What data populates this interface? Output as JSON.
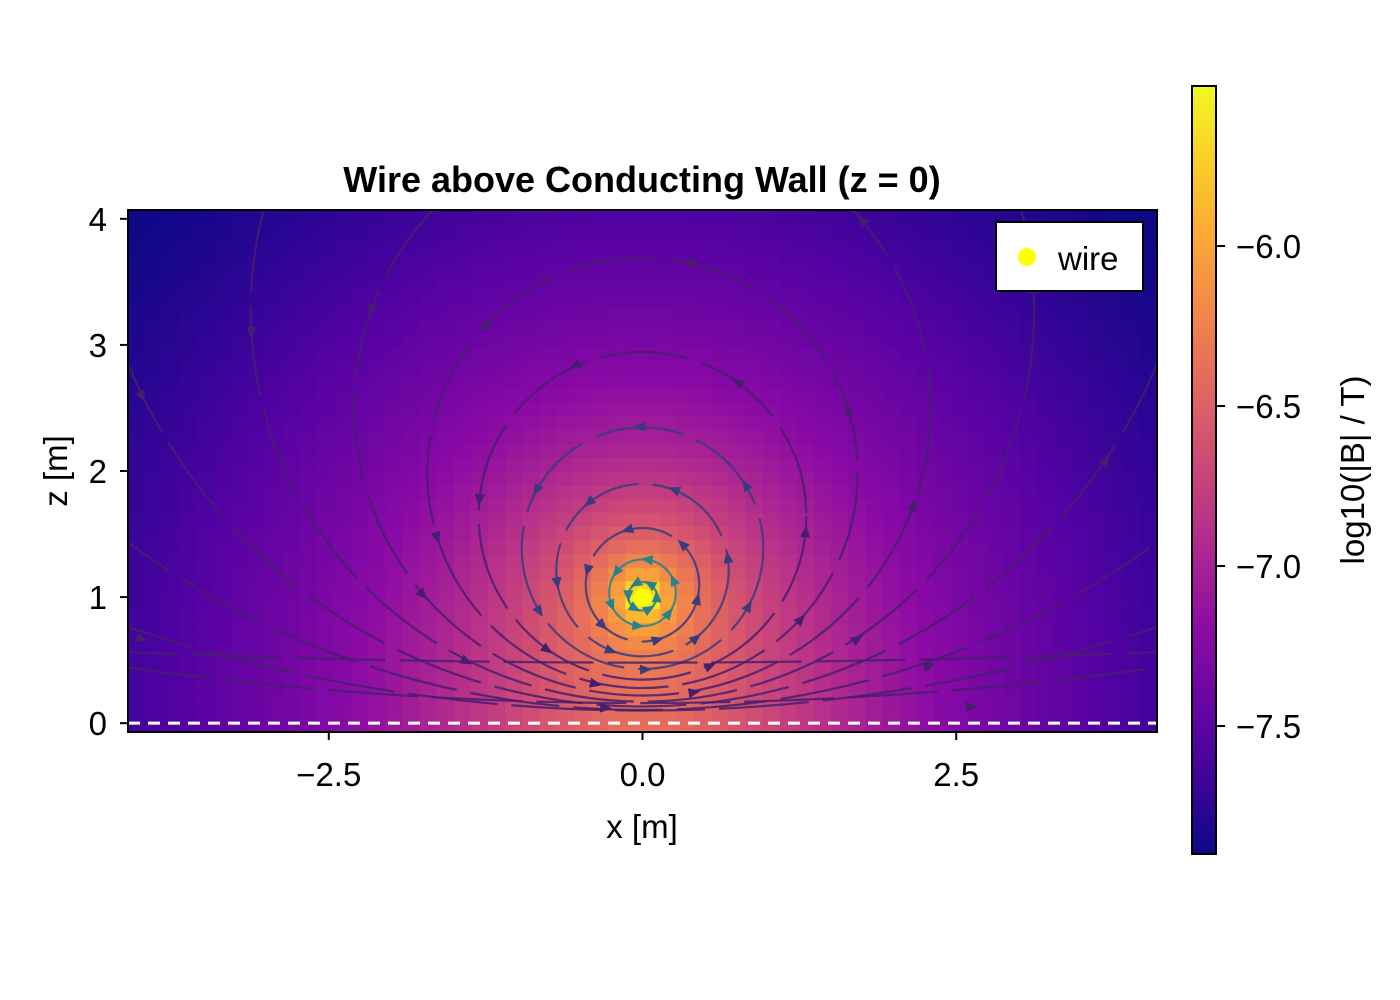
{
  "chart_data": {
    "type": "heatmap",
    "title": "Wire above Conducting Wall (z = 0)",
    "xlabel": "x [m]",
    "ylabel": "z [m]",
    "xlim": [
      -4.1,
      4.1
    ],
    "ylim": [
      -0.07,
      4.07
    ],
    "x_ticks": [
      {
        "value": -2.5,
        "label": "−2.5"
      },
      {
        "value": 0.0,
        "label": "0.0"
      },
      {
        "value": 2.5,
        "label": "2.5"
      }
    ],
    "y_ticks": [
      {
        "value": 0,
        "label": "0"
      },
      {
        "value": 1,
        "label": "1"
      },
      {
        "value": 2,
        "label": "2"
      },
      {
        "value": 3,
        "label": "3"
      },
      {
        "value": 4,
        "label": "4"
      }
    ],
    "wire": {
      "x": 0.0,
      "z": 1.0,
      "color": "#ffff00"
    },
    "legend": {
      "position": "top-right",
      "entries": [
        {
          "label": "wire",
          "color": "#ffff00"
        }
      ]
    },
    "wall": {
      "z": 0.0,
      "style": "dashed",
      "color": "#ffffff"
    },
    "field_model": "image current: wire at z=1 and image at z=-1 with opposite current",
    "colormap": "plasma",
    "colorbar": {
      "label": "log10(|B| / T)",
      "range": [
        -7.9,
        -5.5
      ],
      "ticks": [
        {
          "value": -6.0,
          "label": "−6.0"
        },
        {
          "value": -6.5,
          "label": "−6.5"
        },
        {
          "value": -7.0,
          "label": "−7.0"
        },
        {
          "value": -7.5,
          "label": "−7.5"
        }
      ]
    },
    "grid": false,
    "grid_resolution": [
      60,
      38
    ]
  }
}
